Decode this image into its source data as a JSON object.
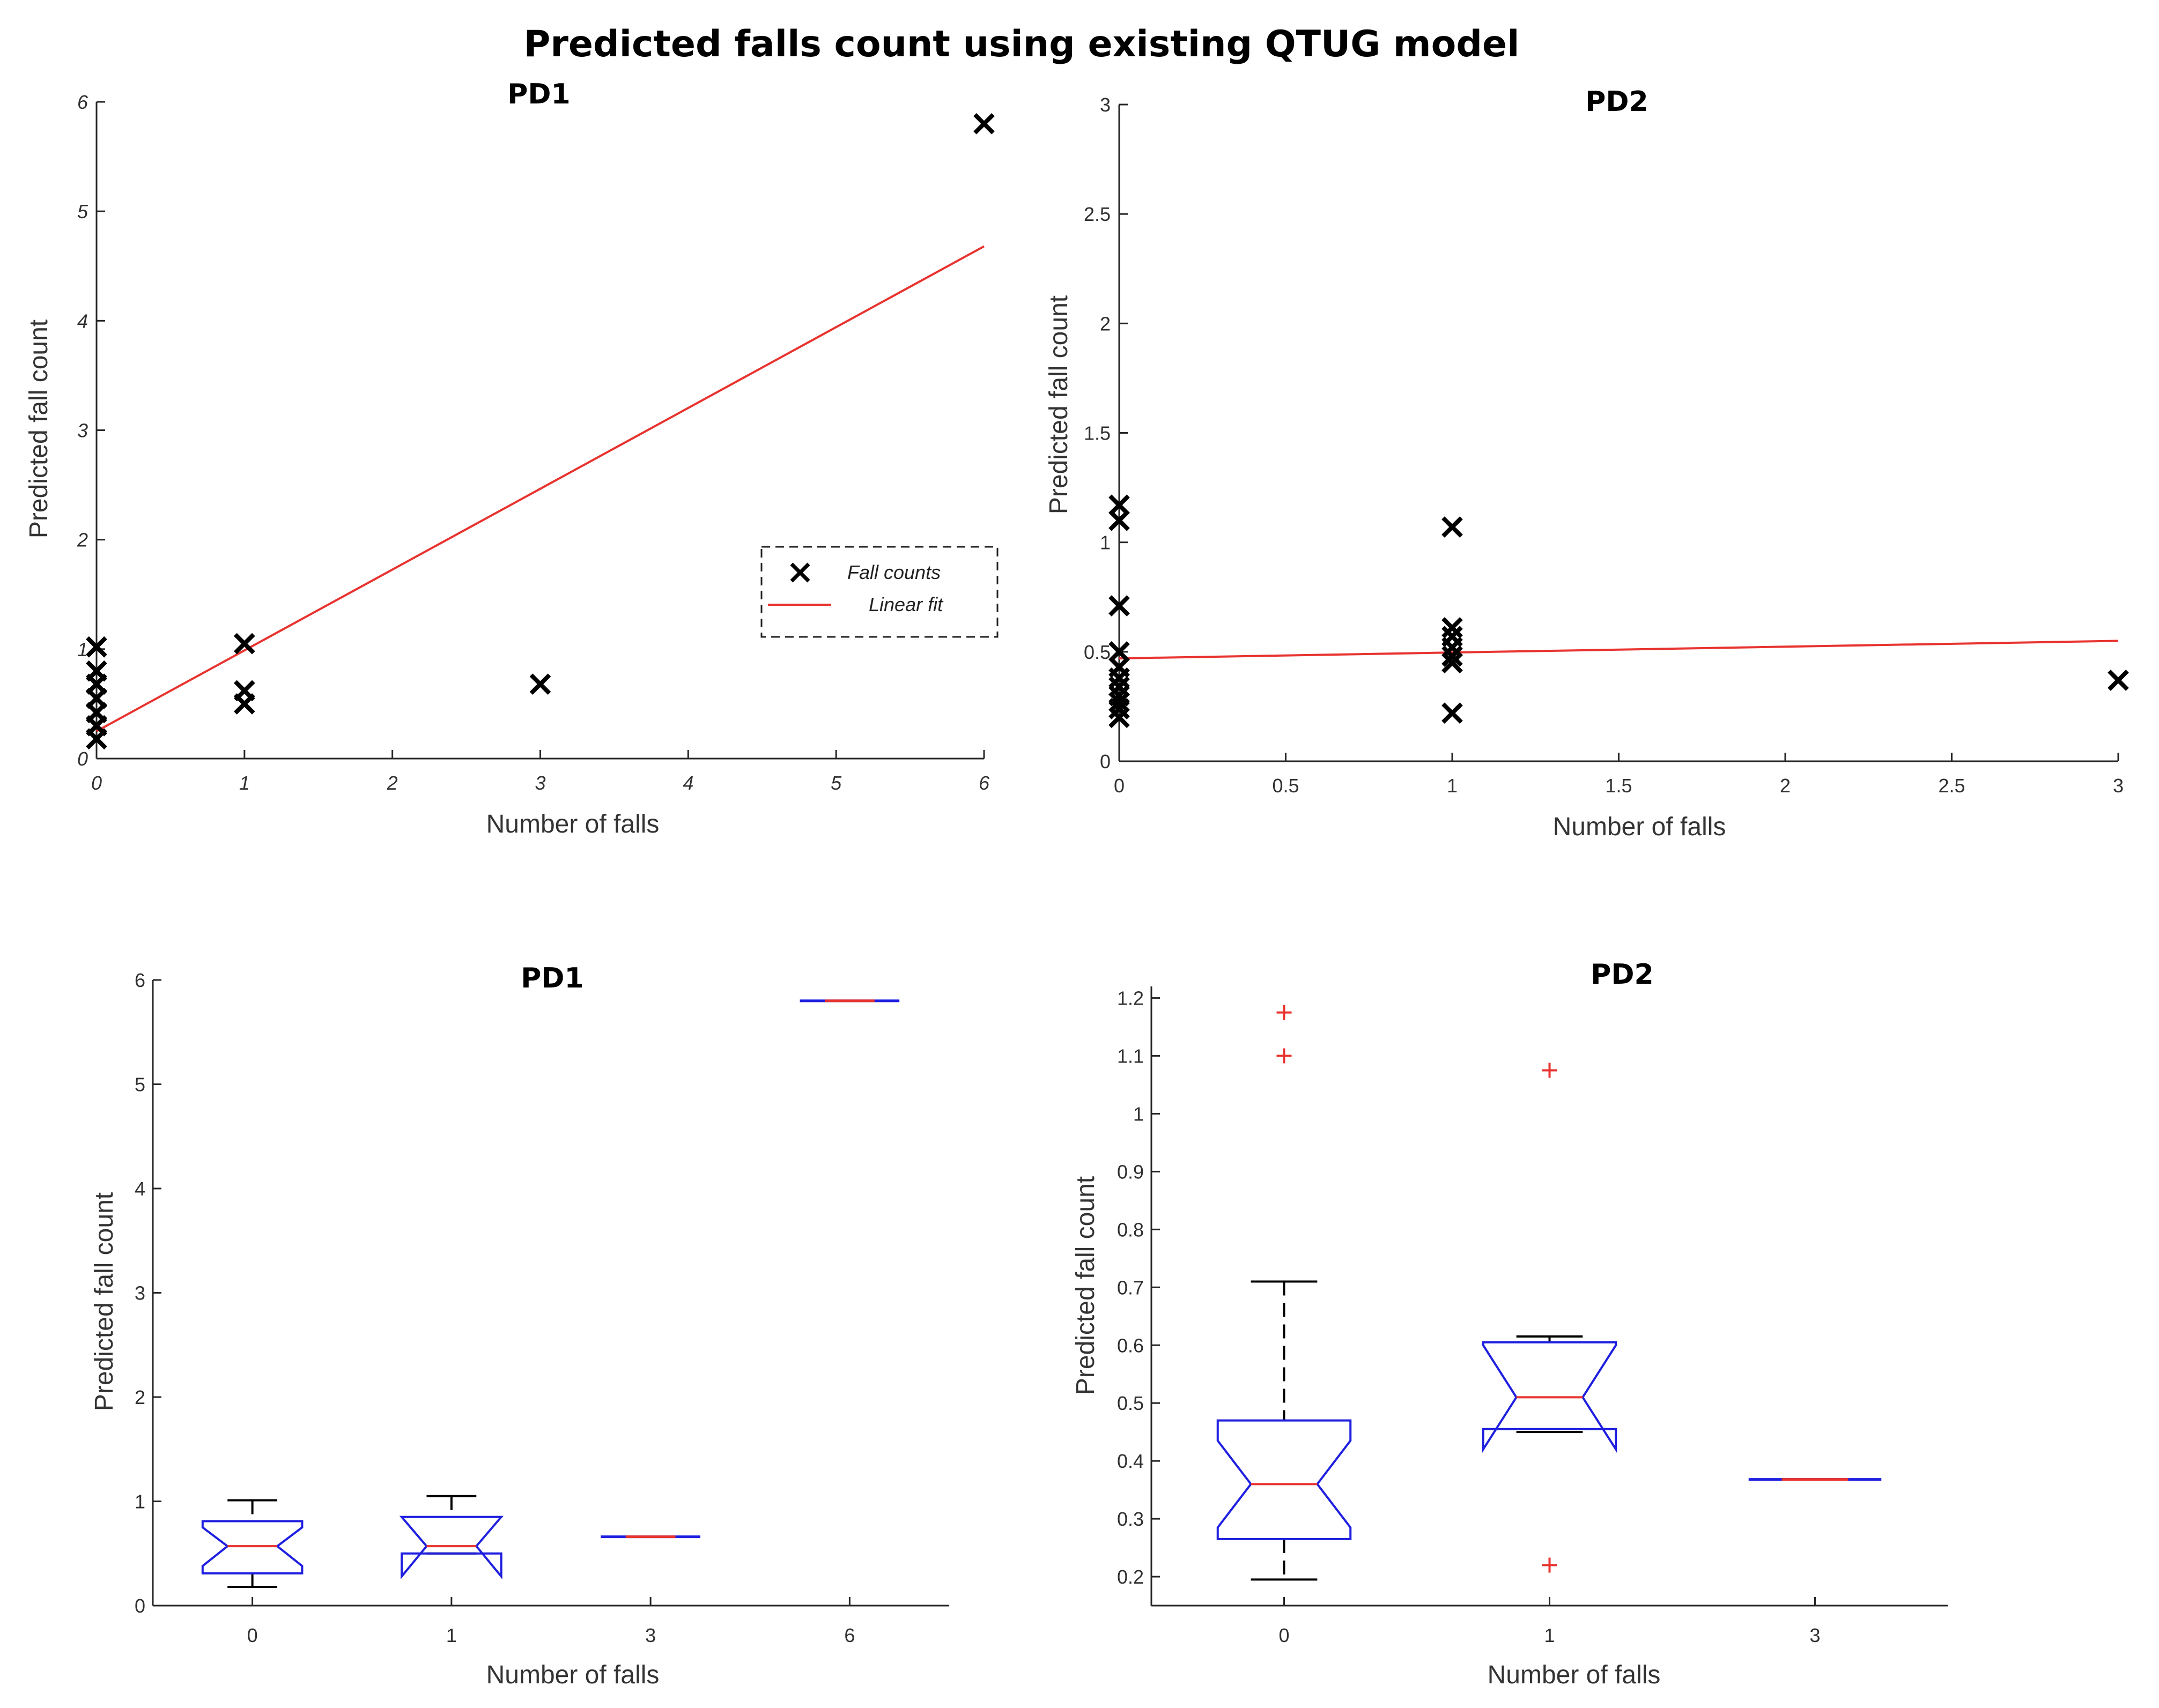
{
  "figure_title": "Predicted falls count using existing QTUG model",
  "colors": {
    "marker": "#000000",
    "fit": "#e8332f",
    "box": "#1f1fe0",
    "median": "#e8332f",
    "whisker": "#000000",
    "outlier": "#e8332f"
  },
  "chart_data": [
    {
      "type": "scatter",
      "title": "PD1",
      "xlabel": "Number of falls",
      "ylabel": "Predicted fall count",
      "xlim": [
        0,
        6
      ],
      "ylim": [
        0,
        6
      ],
      "xticks": [
        "0",
        "1",
        "2",
        "3",
        "4",
        "5",
        "6"
      ],
      "yticks": [
        "0",
        "1",
        "2",
        "3",
        "4",
        "5",
        "6"
      ],
      "series": [
        {
          "name": "Fall counts",
          "marker": "x",
          "points": [
            [
              0,
              1.02
            ],
            [
              0,
              0.8
            ],
            [
              0,
              0.68
            ],
            [
              0,
              0.55
            ],
            [
              0,
              0.42
            ],
            [
              0,
              0.3
            ],
            [
              0,
              0.18
            ],
            [
              1,
              1.05
            ],
            [
              1,
              0.62
            ],
            [
              1,
              0.5
            ],
            [
              3,
              0.68
            ],
            [
              6,
              5.8
            ]
          ]
        },
        {
          "name": "Linear fit",
          "kind": "line",
          "points": [
            [
              0,
              0.25
            ],
            [
              6,
              4.68
            ]
          ]
        }
      ],
      "legend": {
        "location": "lower-right",
        "entries": [
          "Fall counts",
          "Linear fit"
        ]
      }
    },
    {
      "type": "scatter",
      "title": "PD2",
      "xlabel": "Number of falls",
      "ylabel": "Predicted fall count",
      "xlim": [
        0,
        3
      ],
      "ylim": [
        0,
        3
      ],
      "xticks": [
        "0",
        "0.5",
        "1",
        "1.5",
        "2",
        "2.5",
        "3"
      ],
      "yticks": [
        "0",
        "0.5",
        "1",
        "1.5",
        "2",
        "2.5",
        "3"
      ],
      "series": [
        {
          "name": "Fall counts",
          "marker": "x",
          "points": [
            [
              0,
              1.17
            ],
            [
              0,
              1.1
            ],
            [
              0,
              0.71
            ],
            [
              0,
              0.5
            ],
            [
              0,
              0.43
            ],
            [
              0,
              0.38
            ],
            [
              0,
              0.34
            ],
            [
              0,
              0.3
            ],
            [
              0,
              0.27
            ],
            [
              0,
              0.24
            ],
            [
              0,
              0.2
            ],
            [
              1,
              1.07
            ],
            [
              1,
              0.61
            ],
            [
              1,
              0.57
            ],
            [
              1,
              0.52
            ],
            [
              1,
              0.48
            ],
            [
              1,
              0.45
            ],
            [
              1,
              0.22
            ],
            [
              3,
              0.37
            ]
          ]
        },
        {
          "name": "Linear fit",
          "kind": "line",
          "points": [
            [
              0,
              0.47
            ],
            [
              3,
              0.55
            ]
          ]
        }
      ]
    },
    {
      "type": "box",
      "title": "PD1",
      "xlabel": "Number of falls",
      "ylabel": "Predicted fall count",
      "ylim": [
        0,
        6
      ],
      "yticks": [
        "0",
        "1",
        "2",
        "3",
        "4",
        "5",
        "6"
      ],
      "categories": [
        "0",
        "1",
        "3",
        "6"
      ],
      "boxes": [
        {
          "category": "0",
          "q1": 0.31,
          "median": 0.57,
          "q3": 0.81,
          "whisker_low": 0.18,
          "whisker_high": 1.01,
          "notch_low": 0.38,
          "notch_high": 0.75,
          "outliers": []
        },
        {
          "category": "1",
          "q1": 0.5,
          "median": 0.57,
          "q3": 0.85,
          "whisker_low": 0.5,
          "whisker_high": 1.05,
          "notch_low": 0.28,
          "notch_high": 0.85,
          "outliers": []
        },
        {
          "category": "3",
          "q1": 0.66,
          "median": 0.66,
          "q3": 0.66,
          "whisker_low": 0.66,
          "whisker_high": 0.66,
          "notch_low": 0.66,
          "notch_high": 0.66,
          "outliers": []
        },
        {
          "category": "6",
          "q1": 5.8,
          "median": 5.8,
          "q3": 5.8,
          "whisker_low": 5.8,
          "whisker_high": 5.8,
          "notch_low": 5.8,
          "notch_high": 5.8,
          "outliers": []
        }
      ]
    },
    {
      "type": "box",
      "title": "PD2",
      "xlabel": "Number of falls",
      "ylabel": "Predicted fall count",
      "ylim": [
        0.15,
        1.22
      ],
      "yticks": [
        "0.2",
        "0.3",
        "0.4",
        "0.5",
        "0.6",
        "0.7",
        "0.8",
        "0.9",
        "1",
        "1.1",
        "1.2"
      ],
      "categories": [
        "0",
        "1",
        "3"
      ],
      "boxes": [
        {
          "category": "0",
          "q1": 0.265,
          "median": 0.36,
          "q3": 0.47,
          "whisker_low": 0.195,
          "whisker_high": 0.71,
          "notch_low": 0.285,
          "notch_high": 0.435,
          "outliers": [
            1.175,
            1.1
          ]
        },
        {
          "category": "1",
          "q1": 0.455,
          "median": 0.51,
          "q3": 0.605,
          "whisker_low": 0.45,
          "whisker_high": 0.615,
          "notch_low": 0.42,
          "notch_high": 0.6,
          "outliers": [
            1.075,
            0.22
          ]
        },
        {
          "category": "3",
          "q1": 0.368,
          "median": 0.368,
          "q3": 0.368,
          "whisker_low": 0.368,
          "whisker_high": 0.368,
          "notch_low": 0.368,
          "notch_high": 0.368,
          "outliers": []
        }
      ]
    }
  ]
}
